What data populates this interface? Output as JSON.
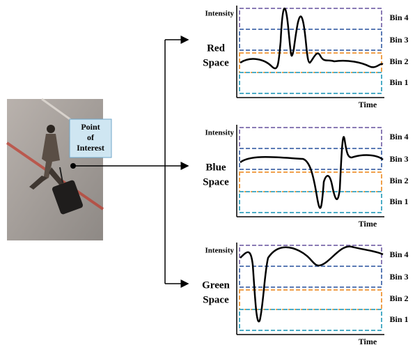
{
  "callout": [
    "Point",
    "of",
    "Interest"
  ],
  "panels": [
    {
      "label": [
        "Red",
        "Space"
      ],
      "y_axis": "Intensity",
      "x_axis": "Time",
      "bins": [
        "Bin 4",
        "Bin 3",
        "Bin 2",
        "Bin 1"
      ]
    },
    {
      "label": [
        "Blue",
        "Space"
      ],
      "y_axis": "Intensity",
      "x_axis": "Time",
      "bins": [
        "Bin 4",
        "Bin 3",
        "Bin 2",
        "Bin 1"
      ]
    },
    {
      "label": [
        "Green",
        "Space"
      ],
      "y_axis": "Intensity",
      "x_axis": "Time",
      "bins": [
        "Bin 4",
        "Bin 3",
        "Bin 2",
        "Bin 1"
      ]
    }
  ]
}
